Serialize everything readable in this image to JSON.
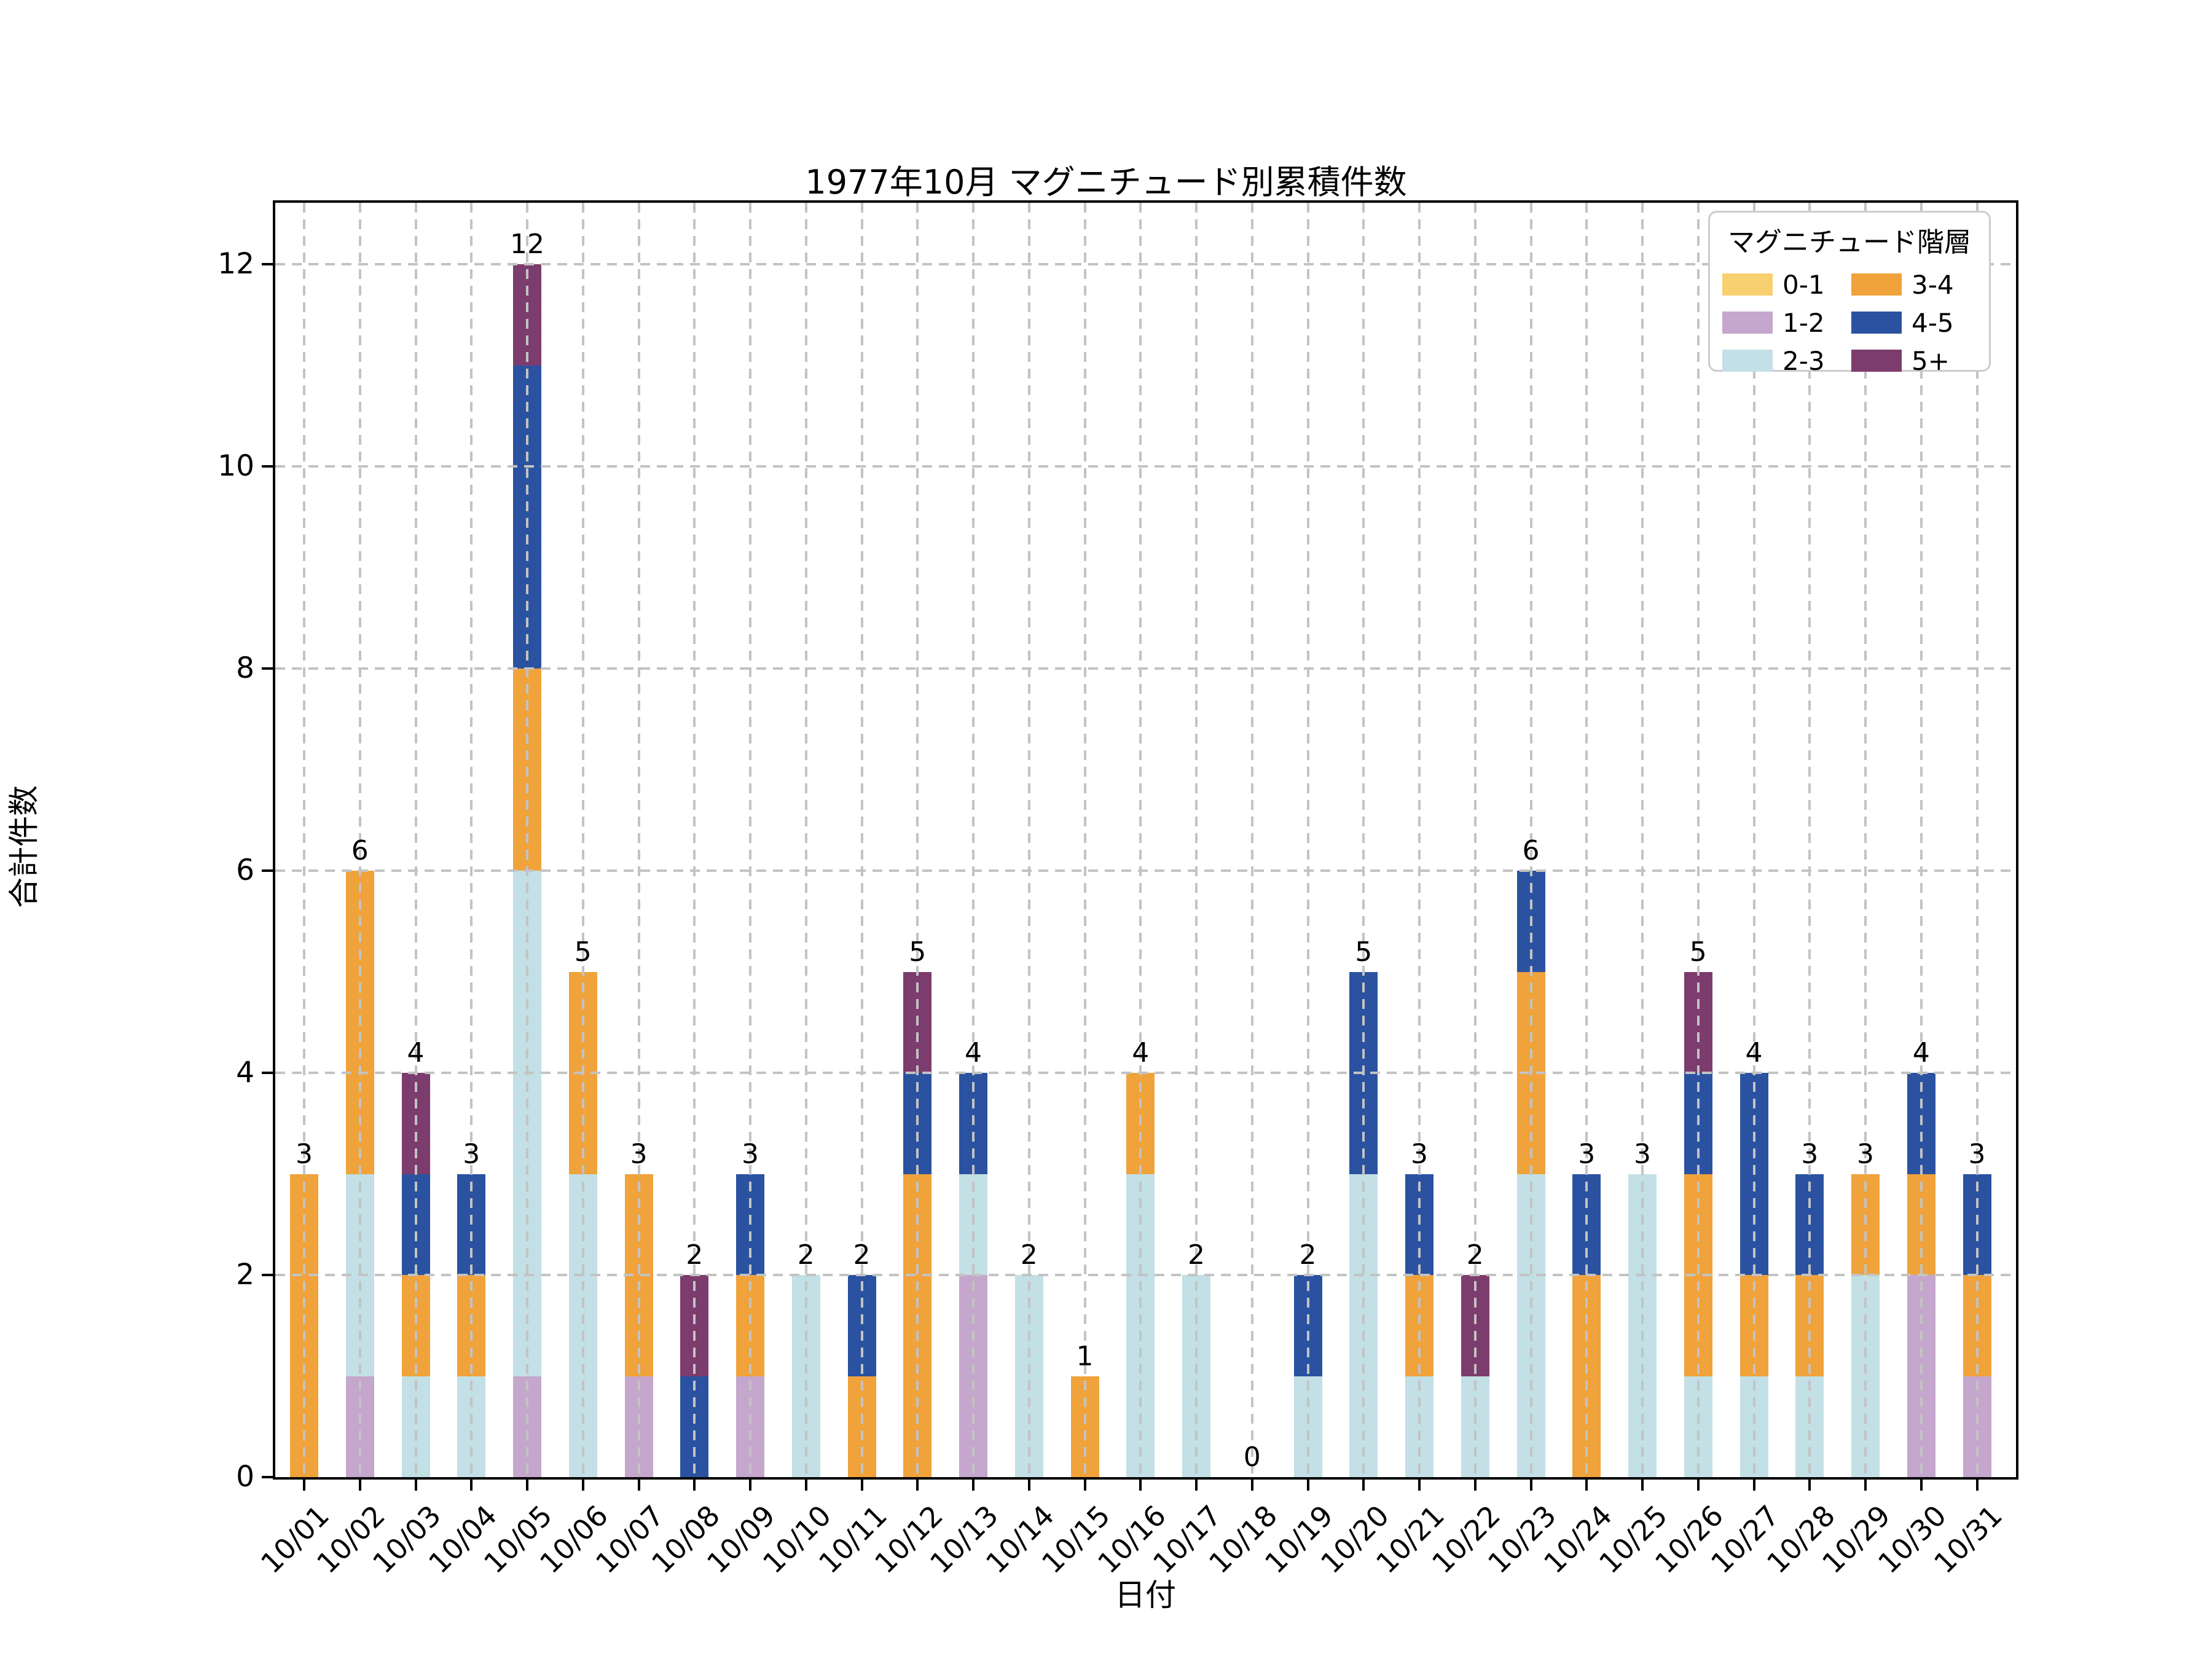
{
  "title": "1977年10月 マグニチュード別累積件数",
  "legend": {
    "title": "マグニチュード階層"
  },
  "chart_data": {
    "type": "bar",
    "stacked": true,
    "title": "1977年10月 マグニチュード別累積件数",
    "xlabel": "日付",
    "ylabel": "合計件数",
    "ylim": [
      0,
      12.6
    ],
    "yticks": [
      0,
      2,
      4,
      6,
      8,
      10,
      12
    ],
    "grid": "dashed, both axes, drawn over bars",
    "legend_position": "upper right, 2 columns",
    "categories": [
      "10/01",
      "10/02",
      "10/03",
      "10/04",
      "10/05",
      "10/06",
      "10/07",
      "10/08",
      "10/09",
      "10/10",
      "10/11",
      "10/12",
      "10/13",
      "10/14",
      "10/15",
      "10/16",
      "10/17",
      "10/18",
      "10/19",
      "10/20",
      "10/21",
      "10/22",
      "10/23",
      "10/24",
      "10/25",
      "10/26",
      "10/27",
      "10/28",
      "10/29",
      "10/30",
      "10/31"
    ],
    "series": [
      {
        "name": "0-1",
        "color": "#F8D06F",
        "values": [
          0,
          0,
          0,
          0,
          0,
          0,
          0,
          0,
          0,
          0,
          0,
          0,
          0,
          0,
          0,
          0,
          0,
          0,
          0,
          0,
          0,
          0,
          0,
          0,
          0,
          0,
          0,
          0,
          0,
          0,
          0
        ]
      },
      {
        "name": "1-2",
        "color": "#C5A6CC",
        "values": [
          0,
          1,
          0,
          0,
          1,
          0,
          1,
          0,
          1,
          0,
          0,
          0,
          2,
          0,
          0,
          0,
          0,
          0,
          0,
          0,
          0,
          0,
          0,
          0,
          0,
          0,
          0,
          0,
          0,
          2,
          1
        ]
      },
      {
        "name": "2-3",
        "color": "#C2E0E5",
        "values": [
          0,
          2,
          1,
          1,
          5,
          3,
          0,
          0,
          0,
          2,
          0,
          0,
          1,
          2,
          0,
          3,
          2,
          0,
          1,
          3,
          1,
          1,
          3,
          0,
          3,
          1,
          1,
          1,
          2,
          0,
          0
        ]
      },
      {
        "name": "3-4",
        "color": "#F0A23B",
        "values": [
          3,
          3,
          1,
          1,
          2,
          2,
          2,
          0,
          1,
          0,
          1,
          3,
          0,
          0,
          1,
          1,
          0,
          0,
          0,
          0,
          1,
          0,
          2,
          2,
          0,
          2,
          1,
          1,
          1,
          1,
          1
        ]
      },
      {
        "name": "4-5",
        "color": "#2A52A0",
        "values": [
          0,
          0,
          1,
          1,
          3,
          0,
          0,
          1,
          1,
          0,
          1,
          1,
          1,
          0,
          0,
          0,
          0,
          0,
          1,
          2,
          1,
          0,
          1,
          1,
          0,
          1,
          2,
          1,
          0,
          1,
          1
        ]
      },
      {
        "name": "5+",
        "color": "#7C3C6E",
        "values": [
          0,
          0,
          1,
          0,
          1,
          0,
          0,
          1,
          0,
          0,
          0,
          1,
          0,
          0,
          0,
          0,
          0,
          0,
          0,
          0,
          0,
          1,
          0,
          0,
          0,
          1,
          0,
          0,
          0,
          0,
          0
        ]
      }
    ],
    "totals": [
      3,
      6,
      4,
      3,
      12,
      5,
      3,
      2,
      3,
      2,
      2,
      5,
      4,
      2,
      1,
      4,
      2,
      0,
      2,
      5,
      3,
      2,
      6,
      3,
      3,
      5,
      4,
      3,
      3,
      4,
      3
    ]
  }
}
